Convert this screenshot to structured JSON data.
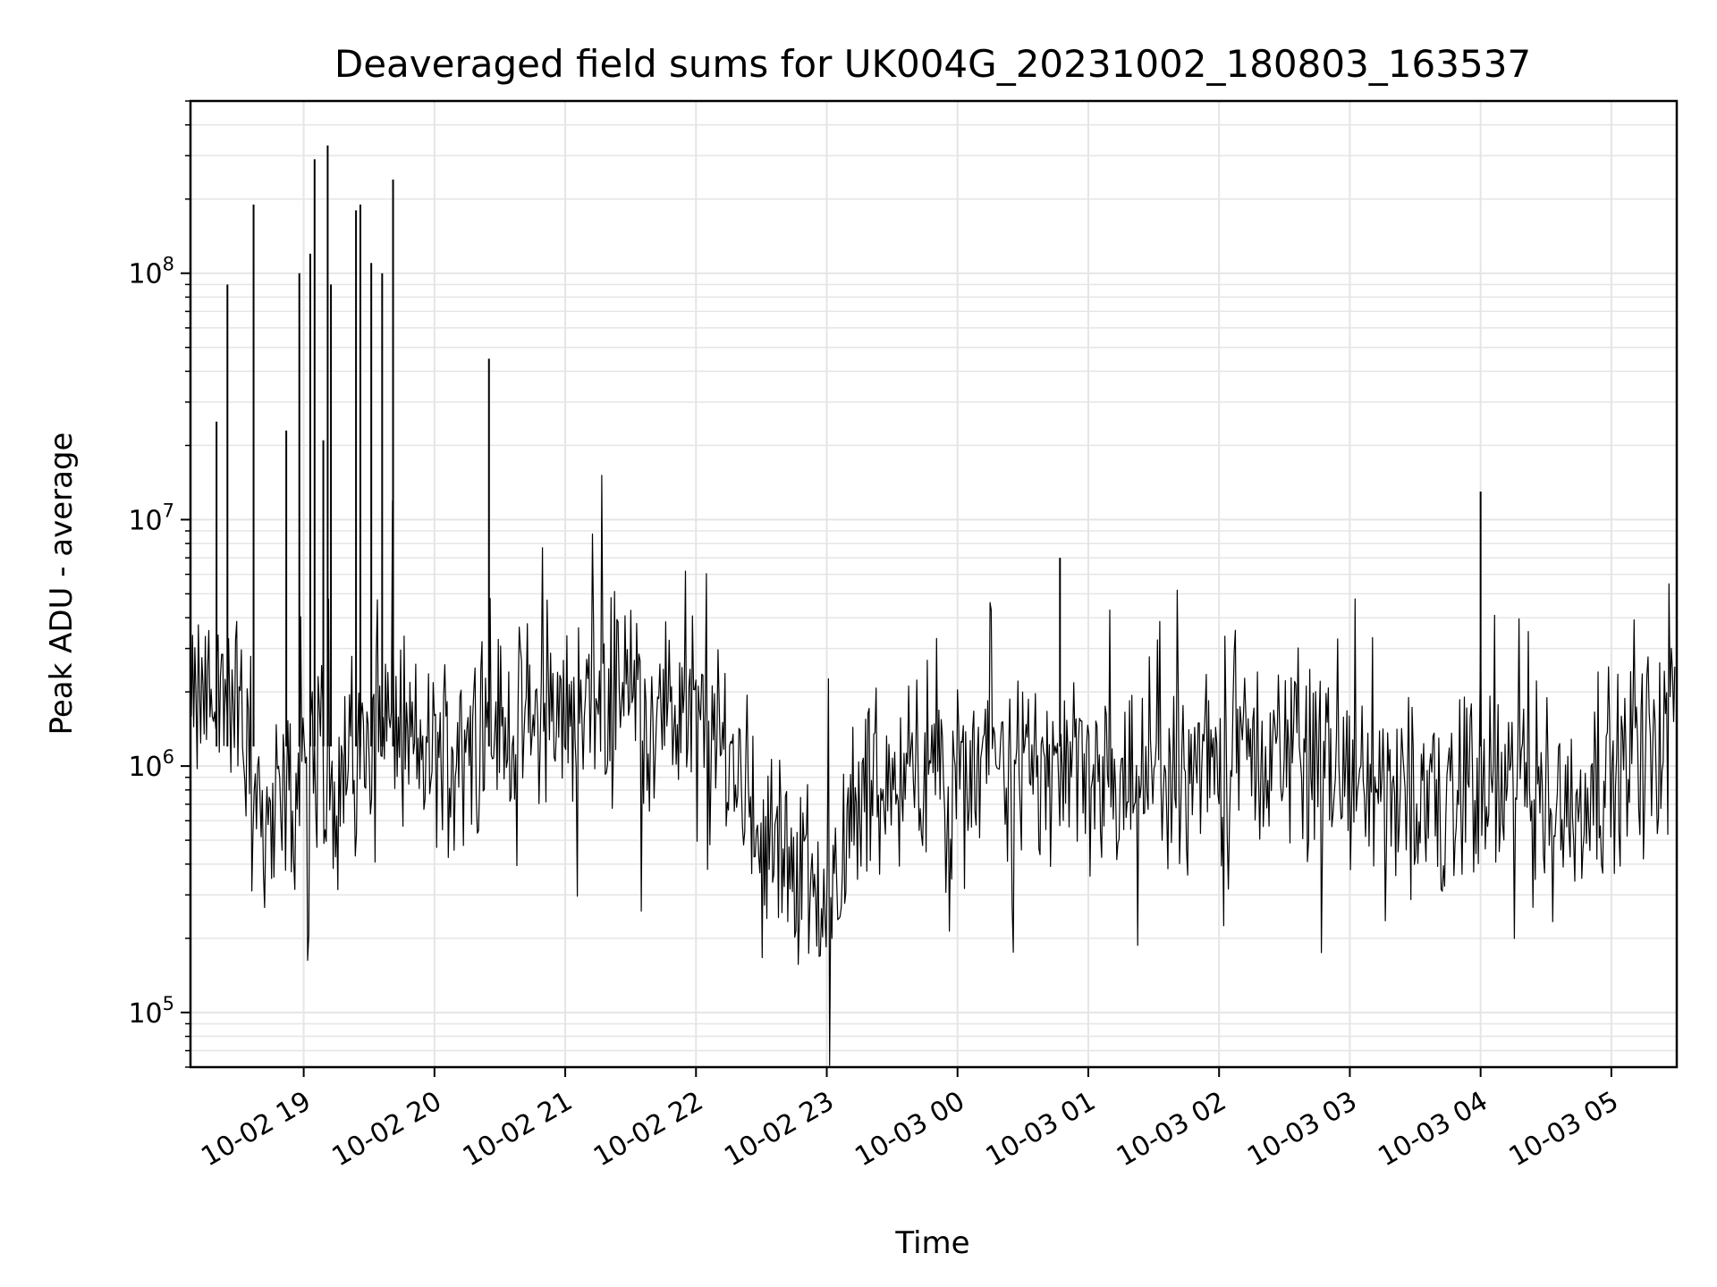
{
  "chart_data": {
    "type": "line",
    "title": "Deaveraged field sums for UK004G_20231002_180803_163537",
    "xlabel": "Time",
    "ylabel": "Peak ADU - average",
    "y_scale": "log",
    "ylim": [
      60000,
      500000000
    ],
    "xlim": [
      "2023-10-02T18:08:03",
      "2023-10-03T05:30:00"
    ],
    "grid": true,
    "line_color": "#000000",
    "grid_color": "#e5e5e5",
    "x_ticks": [
      {
        "time": "2023-10-02T19:00:00",
        "label": "10-02 19"
      },
      {
        "time": "2023-10-02T20:00:00",
        "label": "10-02 20"
      },
      {
        "time": "2023-10-02T21:00:00",
        "label": "10-02 21"
      },
      {
        "time": "2023-10-02T22:00:00",
        "label": "10-02 22"
      },
      {
        "time": "2023-10-02T23:00:00",
        "label": "10-02 23"
      },
      {
        "time": "2023-10-03T00:00:00",
        "label": "10-03 00"
      },
      {
        "time": "2023-10-03T01:00:00",
        "label": "10-03 01"
      },
      {
        "time": "2023-10-03T02:00:00",
        "label": "10-03 02"
      },
      {
        "time": "2023-10-03T03:00:00",
        "label": "10-03 03"
      },
      {
        "time": "2023-10-03T04:00:00",
        "label": "10-03 04"
      },
      {
        "time": "2023-10-03T05:00:00",
        "label": "10-03 05"
      }
    ],
    "y_ticks": [
      {
        "value": 100000,
        "base": "10",
        "exp": "5"
      },
      {
        "value": 1000000,
        "base": "10",
        "exp": "6"
      },
      {
        "value": 10000000,
        "base": "10",
        "exp": "7"
      },
      {
        "value": 100000000,
        "base": "10",
        "exp": "8"
      }
    ],
    "series": [
      {
        "x": [
          "2023-10-02T18:08:03",
          "2023-10-02T18:12:00",
          "2023-10-02T18:18:00",
          "2023-10-02T18:24:00",
          "2023-10-02T18:30:00",
          "2023-10-02T18:36:00",
          "2023-10-02T18:42:00",
          "2023-10-02T18:48:00",
          "2023-10-02T18:54:00",
          "2023-10-02T19:00:00",
          "2023-10-02T19:06:00",
          "2023-10-02T19:12:00",
          "2023-10-02T19:18:00",
          "2023-10-02T19:24:00",
          "2023-10-02T19:30:00",
          "2023-10-02T19:36:00",
          "2023-10-02T19:42:00",
          "2023-10-02T19:48:00",
          "2023-10-02T19:54:00",
          "2023-10-02T20:00:00",
          "2023-10-02T20:15:00",
          "2023-10-02T20:30:00",
          "2023-10-02T20:45:00",
          "2023-10-02T21:00:00",
          "2023-10-02T21:15:00",
          "2023-10-02T21:30:00",
          "2023-10-02T21:45:00",
          "2023-10-02T22:00:00",
          "2023-10-02T22:15:00",
          "2023-10-02T22:30:00",
          "2023-10-02T22:45:00",
          "2023-10-02T23:00:00",
          "2023-10-02T23:15:00",
          "2023-10-02T23:30:00",
          "2023-10-02T23:45:00",
          "2023-10-03T00:00:00",
          "2023-10-03T00:15:00",
          "2023-10-03T00:30:00",
          "2023-10-03T00:45:00",
          "2023-10-03T01:00:00",
          "2023-10-03T01:15:00",
          "2023-10-03T01:30:00",
          "2023-10-03T01:45:00",
          "2023-10-03T02:00:00",
          "2023-10-03T02:15:00",
          "2023-10-03T02:30:00",
          "2023-10-03T02:45:00",
          "2023-10-03T03:00:00",
          "2023-10-03T03:15:00",
          "2023-10-03T03:30:00",
          "2023-10-03T03:45:00",
          "2023-10-03T04:00:00",
          "2023-10-03T04:15:00",
          "2023-10-03T04:30:00",
          "2023-10-03T04:45:00",
          "2023-10-03T05:00:00",
          "2023-10-03T05:15:00",
          "2023-10-03T05:30:00"
        ],
        "y": [
          1500000,
          1800000,
          2000000,
          2000000,
          1900000,
          700000,
          650000,
          700000,
          800000,
          900000,
          1000000,
          1100000,
          1000000,
          1200000,
          1300000,
          1500000,
          1600000,
          1200000,
          1100000,
          1100000,
          1300000,
          1500000,
          1600000,
          1600000,
          1800000,
          2000000,
          1700000,
          1400000,
          1100000,
          600000,
          400000,
          300000,
          700000,
          900000,
          1000000,
          900000,
          1000000,
          1100000,
          900000,
          800000,
          800000,
          800000,
          900000,
          1000000,
          1100000,
          1200000,
          1000000,
          900000,
          800000,
          700000,
          700000,
          800000,
          800000,
          700000,
          700000,
          1000000,
          1100000,
          1300000
        ]
      }
    ],
    "spikes": [
      {
        "x": "2023-10-02T18:20:00",
        "y": 25000000
      },
      {
        "x": "2023-10-02T18:25:00",
        "y": 90000000
      },
      {
        "x": "2023-10-02T18:37:00",
        "y": 190000000
      },
      {
        "x": "2023-10-02T18:52:00",
        "y": 23000000
      },
      {
        "x": "2023-10-02T18:58:00",
        "y": 100000000
      },
      {
        "x": "2023-10-02T19:03:00",
        "y": 120000000
      },
      {
        "x": "2023-10-02T19:05:00",
        "y": 290000000
      },
      {
        "x": "2023-10-02T19:09:00",
        "y": 21000000
      },
      {
        "x": "2023-10-02T19:11:00",
        "y": 330000000
      },
      {
        "x": "2023-10-02T19:12:30",
        "y": 90000000
      },
      {
        "x": "2023-10-02T19:24:00",
        "y": 180000000
      },
      {
        "x": "2023-10-02T19:26:00",
        "y": 190000000
      },
      {
        "x": "2023-10-02T19:31:00",
        "y": 110000000
      },
      {
        "x": "2023-10-02T19:36:00",
        "y": 100000000
      },
      {
        "x": "2023-10-02T19:41:00",
        "y": 240000000
      },
      {
        "x": "2023-10-02T20:25:00",
        "y": 45000000
      },
      {
        "x": "2023-10-03T00:47:00",
        "y": 7000000
      },
      {
        "x": "2023-10-03T04:00:00",
        "y": 13000000
      }
    ]
  }
}
